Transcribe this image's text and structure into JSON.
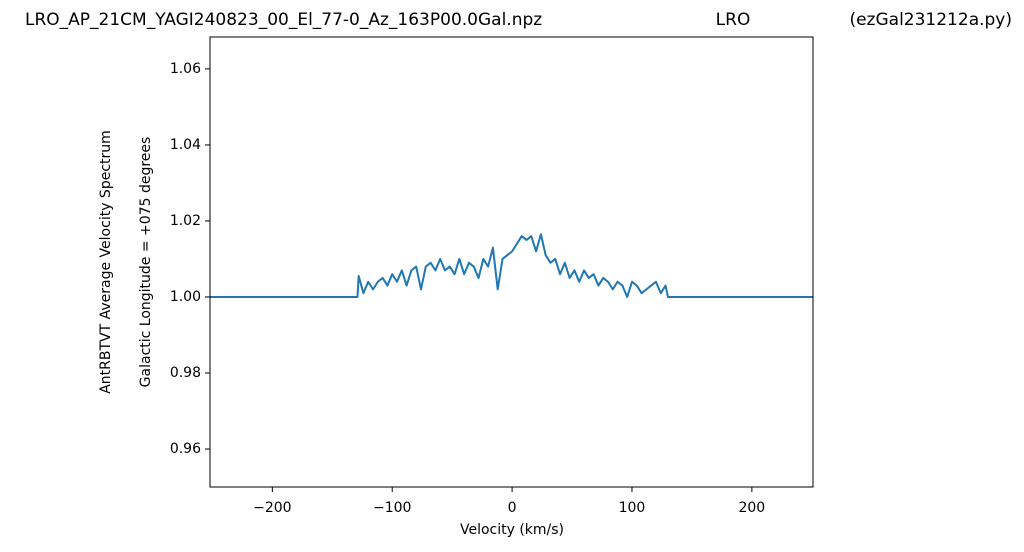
{
  "chart_data": {
    "type": "line",
    "title": "LRO_AP_21CM_YAGI240823_00_El_77-0_Az_163P00.0Gal.npz",
    "title_center": "LRO",
    "title_right": "(ezGal231212a.py)",
    "xlabel": "Velocity (km/s)",
    "ylabel": "AntRBTVT Average Velocity Spectrum",
    "ylabel2": "Galactic Longitude = +075 degrees",
    "color": "#1f77b4",
    "xlim": [
      -252,
      251
    ],
    "ylim": [
      0.95,
      1.0684
    ],
    "xticks": [
      {
        "value": -200,
        "label": "−200"
      },
      {
        "value": -100,
        "label": "−100"
      },
      0,
      100,
      200
    ],
    "yticks": [
      0.96,
      0.98,
      {
        "value": 1.0,
        "label": "1.00"
      },
      1.02,
      1.04,
      1.06
    ],
    "x": [
      -252,
      -129,
      -128,
      -124,
      -120,
      -116,
      -112,
      -108,
      -104,
      -100,
      -96,
      -92,
      -88,
      -84,
      -80,
      -76,
      -72,
      -68,
      -64,
      -60,
      -56,
      -52,
      -48,
      -44,
      -40,
      -36,
      -32,
      -28,
      -24,
      -20,
      -16,
      -12,
      -8,
      -4,
      0,
      4,
      8,
      12,
      16,
      20,
      24,
      28,
      32,
      36,
      40,
      44,
      48,
      52,
      56,
      60,
      64,
      68,
      72,
      76,
      80,
      84,
      88,
      92,
      96,
      100,
      104,
      108,
      112,
      116,
      120,
      124,
      128,
      130,
      251
    ],
    "values": [
      1.0,
      1.0,
      1.0055,
      1.001,
      1.004,
      1.002,
      1.004,
      1.005,
      1.003,
      1.006,
      1.004,
      1.007,
      1.003,
      1.007,
      1.008,
      1.002,
      1.008,
      1.009,
      1.007,
      1.01,
      1.007,
      1.008,
      1.006,
      1.01,
      1.006,
      1.009,
      1.008,
      1.005,
      1.01,
      1.008,
      1.013,
      1.002,
      1.01,
      1.011,
      1.012,
      1.014,
      1.016,
      1.015,
      1.016,
      1.012,
      1.0165,
      1.011,
      1.009,
      1.01,
      1.006,
      1.009,
      1.005,
      1.007,
      1.004,
      1.007,
      1.005,
      1.006,
      1.003,
      1.005,
      1.004,
      1.002,
      1.004,
      1.003,
      1.0,
      1.004,
      1.003,
      1.001,
      1.002,
      1.003,
      1.004,
      1.001,
      1.003,
      1.0,
      1.0
    ]
  }
}
